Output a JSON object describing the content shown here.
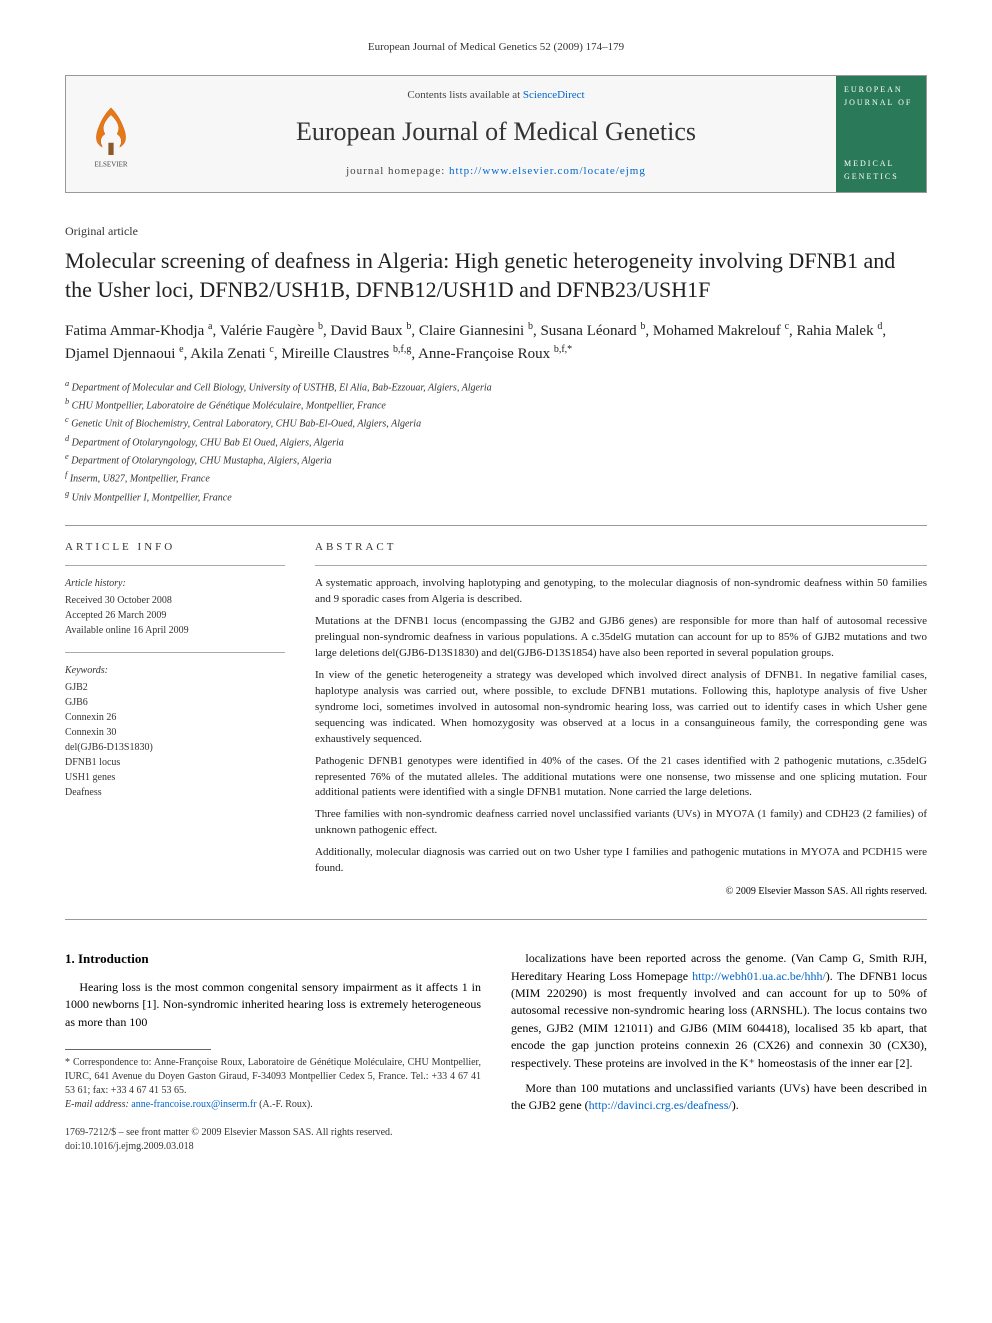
{
  "running_header": "European Journal of Medical Genetics 52 (2009) 174–179",
  "banner": {
    "contents_prefix": "Contents lists available at ",
    "contents_link": "ScienceDirect",
    "journal_name": "European Journal of Medical Genetics",
    "homepage_prefix": "journal homepage: ",
    "homepage_url": "http://www.elsevier.com/locate/ejmg",
    "publisher": "ELSEVIER",
    "cover_text_top": "EUROPEAN JOURNAL OF",
    "cover_text_bottom": "MEDICAL GENETICS"
  },
  "article_type": "Original article",
  "title": "Molecular screening of deafness in Algeria: High genetic heterogeneity involving DFNB1 and the Usher loci, DFNB2/USH1B, DFNB12/USH1D and DFNB23/USH1F",
  "authors_html": "Fatima Ammar-Khodja <sup>a</sup>, Valérie Faugère <sup>b</sup>, David Baux <sup>b</sup>, Claire Giannesini <sup>b</sup>, Susana Léonard <sup>b</sup>, Mohamed Makrelouf <sup>c</sup>, Rahia Malek <sup>d</sup>, Djamel Djennaoui <sup>e</sup>, Akila Zenati <sup>c</sup>, Mireille Claustres <sup>b,f,g</sup>, Anne-Françoise Roux <sup>b,f,*</sup>",
  "affiliations": [
    "a Department of Molecular and Cell Biology, University of USTHB, El Alia, Bab-Ezzouar, Algiers, Algeria",
    "b CHU Montpellier, Laboratoire de Génétique Moléculaire, Montpellier, France",
    "c Genetic Unit of Biochemistry, Central Laboratory, CHU Bab-El-Oued, Algiers, Algeria",
    "d Department of Otolaryngology, CHU Bab El Oued, Algiers, Algeria",
    "e Department of Otolaryngology, CHU Mustapha, Algiers, Algeria",
    "f Inserm, U827, Montpellier, France",
    "g Univ Montpellier I, Montpellier, France"
  ],
  "info": {
    "label": "ARTICLE INFO",
    "history_head": "Article history:",
    "history": [
      "Received 30 October 2008",
      "Accepted 26 March 2009",
      "Available online 16 April 2009"
    ],
    "keywords_head": "Keywords:",
    "keywords": [
      "GJB2",
      "GJB6",
      "Connexin 26",
      "Connexin 30",
      "del(GJB6-D13S1830)",
      "DFNB1 locus",
      "USH1 genes",
      "Deafness"
    ]
  },
  "abstract": {
    "label": "ABSTRACT",
    "paragraphs": [
      "A systematic approach, involving haplotyping and genotyping, to the molecular diagnosis of non-syndromic deafness within 50 families and 9 sporadic cases from Algeria is described.",
      "Mutations at the DFNB1 locus (encompassing the GJB2 and GJB6 genes) are responsible for more than half of autosomal recessive prelingual non-syndromic deafness in various populations. A c.35delG mutation can account for up to 85% of GJB2 mutations and two large deletions del(GJB6-D13S1830) and del(GJB6-D13S1854) have also been reported in several population groups.",
      "In view of the genetic heterogeneity a strategy was developed which involved direct analysis of DFNB1. In negative familial cases, haplotype analysis was carried out, where possible, to exclude DFNB1 mutations. Following this, haplotype analysis of five Usher syndrome loci, sometimes involved in autosomal non-syndromic hearing loss, was carried out to identify cases in which Usher gene sequencing was indicated. When homozygosity was observed at a locus in a consanguineous family, the corresponding gene was exhaustively sequenced.",
      "Pathogenic DFNB1 genotypes were identified in 40% of the cases. Of the 21 cases identified with 2 pathogenic mutations, c.35delG represented 76% of the mutated alleles. The additional mutations were one nonsense, two missense and one splicing mutation. Four additional patients were identified with a single DFNB1 mutation. None carried the large deletions.",
      "Three families with non-syndromic deafness carried novel unclassified variants (UVs) in MYO7A (1 family) and CDH23 (2 families) of unknown pathogenic effect.",
      "Additionally, molecular diagnosis was carried out on two Usher type I families and pathogenic mutations in MYO7A and PCDH15 were found."
    ],
    "copyright": "© 2009 Elsevier Masson SAS. All rights reserved."
  },
  "body": {
    "section_heading": "1. Introduction",
    "left_p1": "Hearing loss is the most common congenital sensory impairment as it affects 1 in 1000 newborns [1]. Non-syndromic inherited hearing loss is extremely heterogeneous as more than 100",
    "right_p1_a": "localizations have been reported across the genome. (Van Camp G, Smith RJH, Hereditary Hearing Loss Homepage ",
    "right_p1_link1": "http://webh01.ua.ac.be/hhh/",
    "right_p1_b": "). The DFNB1 locus (MIM 220290) is most frequently involved and can account for up to 50% of autosomal recessive non-syndromic hearing loss (ARNSHL). The locus contains two genes, GJB2 (MIM 121011) and GJB6 (MIM 604418), localised 35 kb apart, that encode the gap junction proteins connexin 26 (CX26) and connexin 30 (CX30), respectively. These proteins are involved in the K⁺ homeostasis of the inner ear [2].",
    "right_p2_a": "More than 100 mutations and unclassified variants (UVs) have been described in the GJB2 gene (",
    "right_p2_link": "http://davinci.crg.es/deafness/",
    "right_p2_b": ")."
  },
  "footnotes": {
    "corr_label": "* Correspondence to:",
    "corr_text": "Anne-Françoise Roux, Laboratoire de Génétique Moléculaire, CHU Montpellier, IURC, 641 Avenue du Doyen Gaston Giraud, F-34093 Montpellier Cedex 5, France. Tel.: +33 4 67 41 53 61; fax: +33 4 67 41 53 65.",
    "email_label": "E-mail address:",
    "email": "anne-francoise.roux@inserm.fr",
    "email_suffix": "(A.-F. Roux)."
  },
  "footer": {
    "line1": "1769-7212/$ – see front matter © 2009 Elsevier Masson SAS. All rights reserved.",
    "line2": "doi:10.1016/j.ejmg.2009.03.018"
  },
  "colors": {
    "link": "#0066cc",
    "cover_bg": "#2a7a5a",
    "rule": "#999999"
  }
}
